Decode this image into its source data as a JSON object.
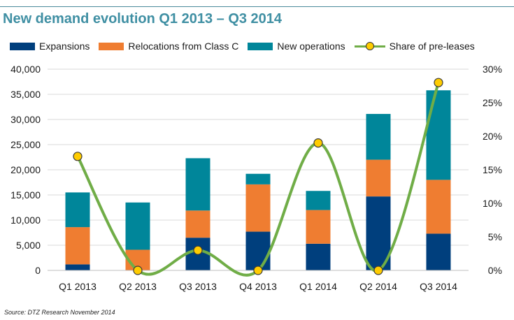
{
  "title": "New demand evolution Q1 2013 – Q3 2014",
  "source": "Source: DTZ Research November 2014",
  "colors": {
    "expansions": "#003f7d",
    "relocations": "#ef7d31",
    "new_operations": "#00869a",
    "pre_leases": "#70ad47",
    "marker": "#ffcc00",
    "title": "#3f8fa3"
  },
  "chart_data": {
    "type": "bar",
    "stacked": true,
    "categories": [
      "Q1 2013",
      "Q2 2013",
      "Q3 2013",
      "Q4 2013",
      "Q1 2014",
      "Q2 2014",
      "Q3 2014"
    ],
    "series": [
      {
        "name": "Expansions",
        "values": [
          1200,
          0,
          6500,
          7700,
          5300,
          14700,
          7300
        ]
      },
      {
        "name": "Relocations from Class C",
        "values": [
          7400,
          4100,
          5400,
          9400,
          6700,
          7300,
          10700
        ]
      },
      {
        "name": "New operations",
        "values": [
          6900,
          9400,
          10400,
          2100,
          3800,
          9100,
          17800
        ]
      }
    ],
    "line_series": {
      "name": "Share of pre-leases",
      "axis": "right",
      "smooth": true,
      "values": [
        17,
        0,
        3,
        0,
        19,
        0,
        28
      ]
    },
    "y_left": {
      "min": 0,
      "max": 40000,
      "step": 5000,
      "ticks": [
        "0",
        "5,000",
        "10,000",
        "15,000",
        "20,000",
        "25,000",
        "30,000",
        "35,000",
        "40,000"
      ]
    },
    "y_right": {
      "min": 0,
      "max": 30,
      "step": 5,
      "ticks": [
        "0%",
        "5%",
        "10%",
        "15%",
        "20%",
        "25%",
        "30%"
      ]
    },
    "legend": "top",
    "grid": true
  }
}
